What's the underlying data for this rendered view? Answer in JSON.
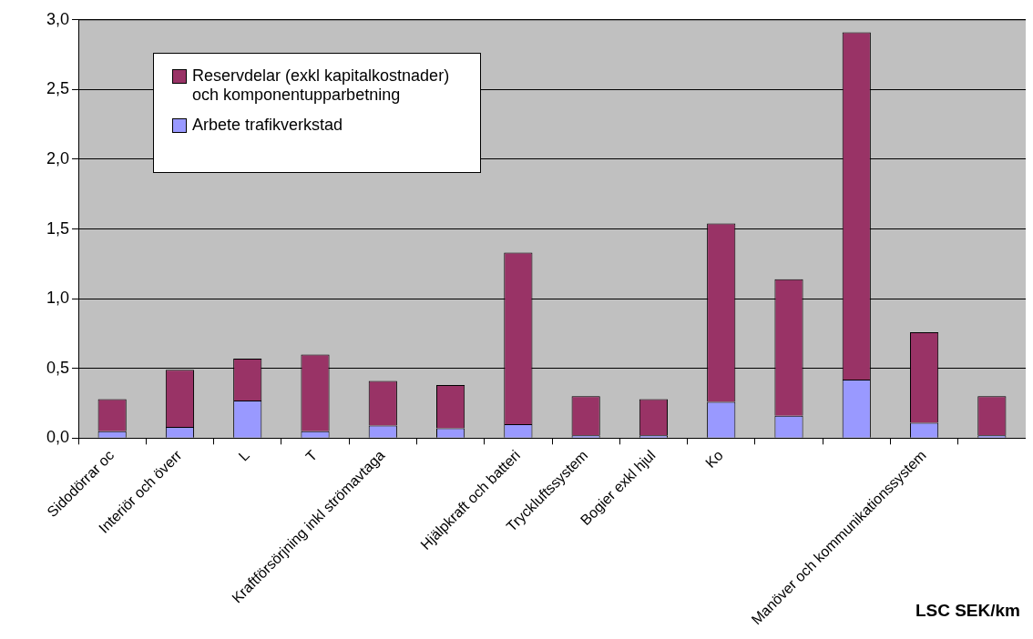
{
  "chart_data": {
    "type": "bar",
    "stacked": true,
    "categories": [
      "Sidodörrar oc",
      "Interiör och överr",
      "L",
      "T",
      "Kraftförsörjning inkl strömavtaga",
      null,
      "Hjälpkraft och batteri",
      "Tryckluftssystem",
      "Bogier exkl hjul",
      "Ko",
      null,
      null,
      "Manöver och kommunikationssystem",
      null
    ],
    "series": [
      {
        "name": "Arbete trafikverkstad",
        "color": "#9999ff",
        "values": [
          0.05,
          0.08,
          0.27,
          0.05,
          0.09,
          0.07,
          0.1,
          0.02,
          0.02,
          0.26,
          0.16,
          0.42,
          0.11,
          0.02
        ]
      },
      {
        "name": "Reservdelar (exkl kapitalkostnader) och komponentupparbetning",
        "color": "#993366",
        "values": [
          0.23,
          0.41,
          0.3,
          0.55,
          0.32,
          0.31,
          1.23,
          0.28,
          0.26,
          1.28,
          0.98,
          2.49,
          0.65,
          0.28
        ]
      }
    ],
    "ylim": [
      0,
      3
    ],
    "yticks": [
      {
        "value": 0,
        "label": "0,0"
      },
      {
        "value": 0.5,
        "label": "0,5"
      },
      {
        "value": 1,
        "label": "1,0"
      },
      {
        "value": 1.5,
        "label": "1,5"
      },
      {
        "value": 2,
        "label": "2,0"
      },
      {
        "value": 2.5,
        "label": "2,5"
      },
      {
        "value": 3,
        "label": "3,0"
      }
    ],
    "grid": "y",
    "legend": "top left",
    "annotations": [
      "LSC SEK/km"
    ]
  }
}
